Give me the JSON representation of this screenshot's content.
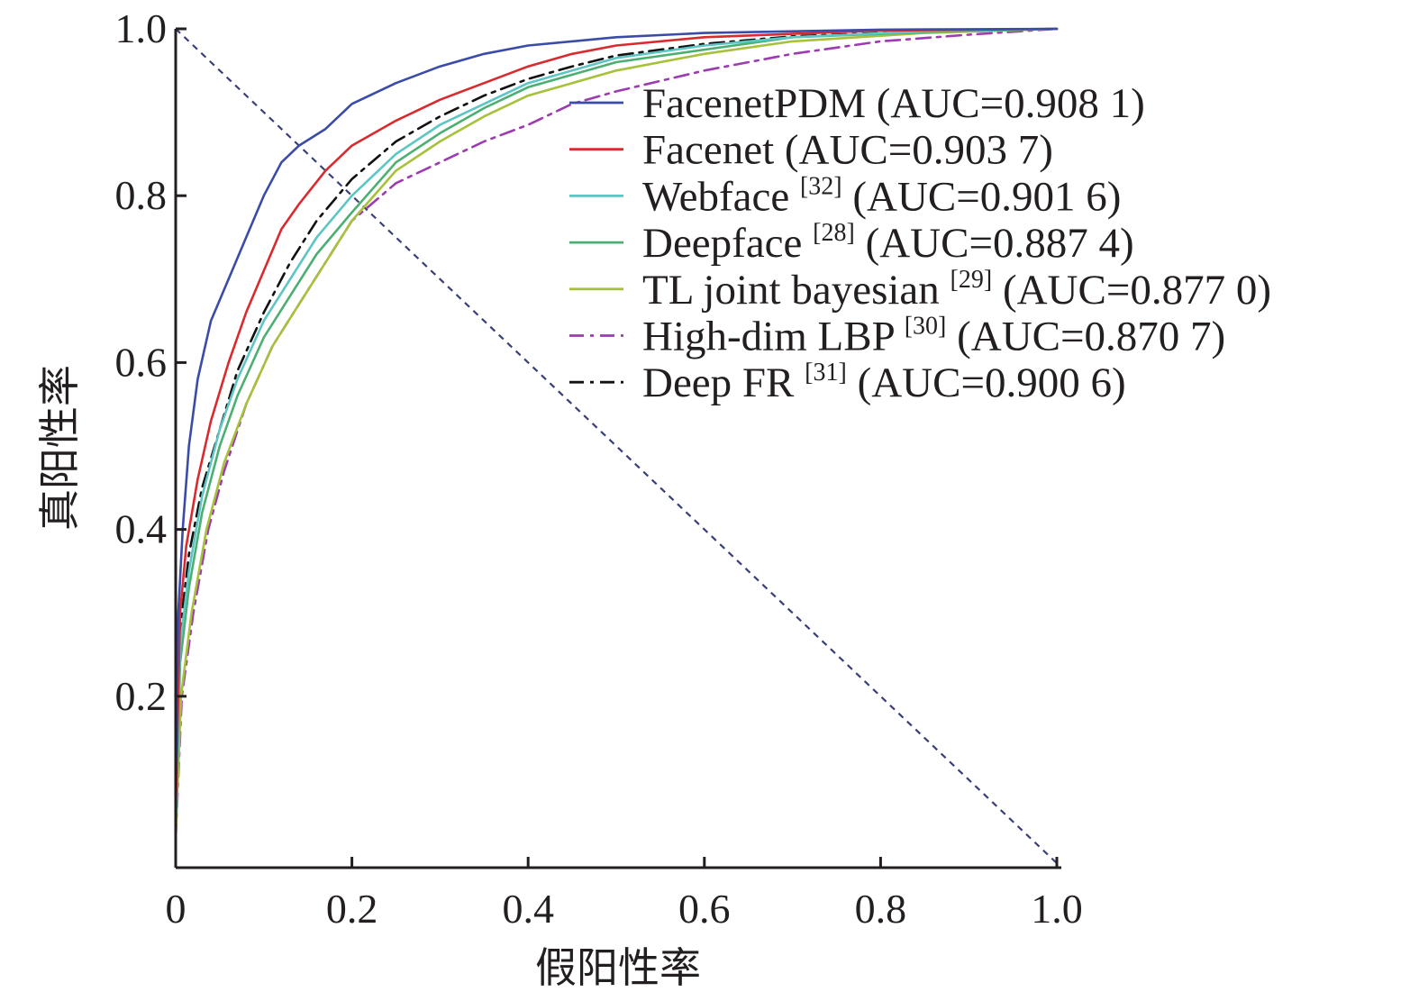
{
  "chart_data": {
    "type": "line",
    "title": "",
    "xlabel": "假阳性率",
    "ylabel": "真阳性率",
    "xlim": [
      0,
      1.0
    ],
    "ylim": [
      0,
      1.0
    ],
    "x_tick_labels": [
      "0",
      "0.2",
      "0.4",
      "0.6",
      "0.8",
      "1.0"
    ],
    "x_tick_values": [
      0,
      0.2,
      0.4,
      0.6,
      0.8,
      1.0
    ],
    "y_tick_labels": [
      "0.2",
      "0.4",
      "0.6",
      "0.8",
      "1.0"
    ],
    "y_tick_values": [
      0.2,
      0.4,
      0.6,
      0.8,
      1.0
    ],
    "grid": false,
    "legend_position": "top-right",
    "reference_line": {
      "name": "diagonal",
      "color": "#3a3f7a",
      "style": "dashed",
      "points": [
        [
          0,
          1.0
        ],
        [
          1.0,
          0
        ]
      ]
    },
    "series": [
      {
        "name": "FacenetPDM",
        "label_main": "FacenetPDM",
        "ref": "",
        "label_tail": "(AUC=0.908 1)",
        "auc": 0.9081,
        "color": "#3b4ba8",
        "style": "solid",
        "points": [
          [
            0,
            0.08
          ],
          [
            0.003,
            0.3
          ],
          [
            0.008,
            0.4
          ],
          [
            0.015,
            0.5
          ],
          [
            0.025,
            0.58
          ],
          [
            0.04,
            0.65
          ],
          [
            0.06,
            0.7
          ],
          [
            0.08,
            0.75
          ],
          [
            0.1,
            0.8
          ],
          [
            0.12,
            0.84
          ],
          [
            0.14,
            0.86
          ],
          [
            0.17,
            0.88
          ],
          [
            0.2,
            0.91
          ],
          [
            0.25,
            0.935
          ],
          [
            0.3,
            0.955
          ],
          [
            0.35,
            0.97
          ],
          [
            0.4,
            0.98
          ],
          [
            0.5,
            0.99
          ],
          [
            0.6,
            0.995
          ],
          [
            0.8,
            0.999
          ],
          [
            1.0,
            1.0
          ]
        ]
      },
      {
        "name": "Facenet",
        "label_main": "Facenet",
        "ref": "",
        "label_tail": "(AUC=0.903 7)",
        "auc": 0.9037,
        "color": "#d92b2f",
        "style": "solid",
        "points": [
          [
            0,
            0.06
          ],
          [
            0.005,
            0.3
          ],
          [
            0.012,
            0.38
          ],
          [
            0.025,
            0.46
          ],
          [
            0.04,
            0.53
          ],
          [
            0.06,
            0.6
          ],
          [
            0.08,
            0.66
          ],
          [
            0.1,
            0.71
          ],
          [
            0.12,
            0.76
          ],
          [
            0.14,
            0.79
          ],
          [
            0.17,
            0.83
          ],
          [
            0.2,
            0.86
          ],
          [
            0.25,
            0.89
          ],
          [
            0.3,
            0.915
          ],
          [
            0.35,
            0.935
          ],
          [
            0.4,
            0.955
          ],
          [
            0.45,
            0.97
          ],
          [
            0.5,
            0.98
          ],
          [
            0.6,
            0.99
          ],
          [
            0.8,
            0.998
          ],
          [
            1.0,
            1.0
          ]
        ]
      },
      {
        "name": "Webface",
        "label_main": "Webface",
        "ref": "[32]",
        "label_tail": "(AUC=0.901 6)",
        "auc": 0.9016,
        "color": "#5cc6c4",
        "style": "solid",
        "points": [
          [
            0,
            0.05
          ],
          [
            0.005,
            0.26
          ],
          [
            0.015,
            0.35
          ],
          [
            0.03,
            0.44
          ],
          [
            0.05,
            0.52
          ],
          [
            0.07,
            0.58
          ],
          [
            0.1,
            0.65
          ],
          [
            0.13,
            0.7
          ],
          [
            0.16,
            0.75
          ],
          [
            0.2,
            0.8
          ],
          [
            0.25,
            0.85
          ],
          [
            0.3,
            0.885
          ],
          [
            0.35,
            0.91
          ],
          [
            0.4,
            0.935
          ],
          [
            0.45,
            0.95
          ],
          [
            0.5,
            0.965
          ],
          [
            0.6,
            0.98
          ],
          [
            0.7,
            0.99
          ],
          [
            0.85,
            0.997
          ],
          [
            1.0,
            1.0
          ]
        ]
      },
      {
        "name": "Deepface",
        "label_main": "Deepface",
        "ref": "[28]",
        "label_tail": "(AUC=0.887 4)",
        "auc": 0.8874,
        "color": "#4caf72",
        "style": "solid",
        "points": [
          [
            0,
            0.04
          ],
          [
            0.005,
            0.24
          ],
          [
            0.015,
            0.33
          ],
          [
            0.03,
            0.42
          ],
          [
            0.05,
            0.5
          ],
          [
            0.07,
            0.56
          ],
          [
            0.1,
            0.63
          ],
          [
            0.13,
            0.68
          ],
          [
            0.16,
            0.73
          ],
          [
            0.2,
            0.78
          ],
          [
            0.25,
            0.84
          ],
          [
            0.3,
            0.875
          ],
          [
            0.35,
            0.905
          ],
          [
            0.4,
            0.93
          ],
          [
            0.45,
            0.945
          ],
          [
            0.5,
            0.96
          ],
          [
            0.6,
            0.975
          ],
          [
            0.7,
            0.99
          ],
          [
            0.85,
            0.996
          ],
          [
            1.0,
            1.0
          ]
        ]
      },
      {
        "name": "TL joint bayesian",
        "label_main": "TL joint bayesian",
        "ref": "[29]",
        "label_tail": "(AUC=0.877 0)",
        "auc": 0.877,
        "color": "#a6c13a",
        "style": "solid",
        "points": [
          [
            0,
            0.03
          ],
          [
            0.006,
            0.2
          ],
          [
            0.018,
            0.3
          ],
          [
            0.035,
            0.4
          ],
          [
            0.055,
            0.48
          ],
          [
            0.08,
            0.55
          ],
          [
            0.11,
            0.62
          ],
          [
            0.14,
            0.67
          ],
          [
            0.17,
            0.72
          ],
          [
            0.2,
            0.77
          ],
          [
            0.25,
            0.83
          ],
          [
            0.3,
            0.865
          ],
          [
            0.35,
            0.895
          ],
          [
            0.4,
            0.92
          ],
          [
            0.45,
            0.935
          ],
          [
            0.5,
            0.95
          ],
          [
            0.6,
            0.97
          ],
          [
            0.7,
            0.985
          ],
          [
            0.85,
            0.995
          ],
          [
            1.0,
            1.0
          ]
        ]
      },
      {
        "name": "High-dim LBP",
        "label_main": "High-dim LBP",
        "ref": "[30]",
        "label_tail": "(AUC=0.870 7)",
        "auc": 0.8707,
        "color": "#9d3bb0",
        "style": "dashdot",
        "points": [
          [
            0,
            0.03
          ],
          [
            0.007,
            0.2
          ],
          [
            0.02,
            0.3
          ],
          [
            0.037,
            0.4
          ],
          [
            0.055,
            0.47
          ],
          [
            0.08,
            0.55
          ],
          [
            0.11,
            0.62
          ],
          [
            0.14,
            0.67
          ],
          [
            0.17,
            0.72
          ],
          [
            0.2,
            0.77
          ],
          [
            0.25,
            0.815
          ],
          [
            0.3,
            0.84
          ],
          [
            0.35,
            0.865
          ],
          [
            0.4,
            0.885
          ],
          [
            0.45,
            0.91
          ],
          [
            0.5,
            0.925
          ],
          [
            0.6,
            0.95
          ],
          [
            0.7,
            0.97
          ],
          [
            0.8,
            0.985
          ],
          [
            0.9,
            0.993
          ],
          [
            1.0,
            1.0
          ]
        ]
      },
      {
        "name": "Deep FR",
        "label_main": "Deep FR",
        "ref": "[31]",
        "label_tail": "(AUC=0.900 6)",
        "auc": 0.9006,
        "color": "#111111",
        "style": "dashdot",
        "points": [
          [
            0,
            0.05
          ],
          [
            0.005,
            0.28
          ],
          [
            0.015,
            0.37
          ],
          [
            0.03,
            0.45
          ],
          [
            0.05,
            0.52
          ],
          [
            0.07,
            0.59
          ],
          [
            0.1,
            0.66
          ],
          [
            0.13,
            0.72
          ],
          [
            0.16,
            0.77
          ],
          [
            0.2,
            0.82
          ],
          [
            0.25,
            0.865
          ],
          [
            0.3,
            0.895
          ],
          [
            0.35,
            0.92
          ],
          [
            0.4,
            0.94
          ],
          [
            0.45,
            0.955
          ],
          [
            0.5,
            0.968
          ],
          [
            0.6,
            0.982
          ],
          [
            0.7,
            0.991
          ],
          [
            0.85,
            0.997
          ],
          [
            1.0,
            1.0
          ]
        ]
      }
    ]
  }
}
